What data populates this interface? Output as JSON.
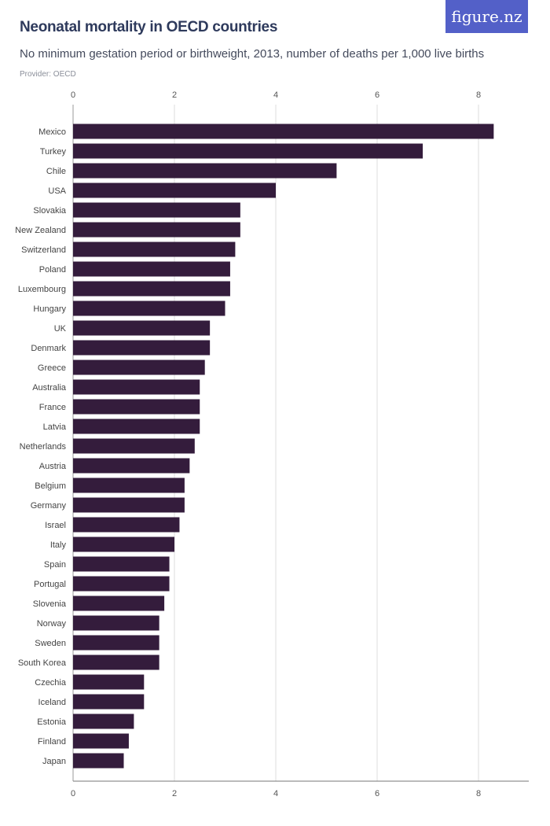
{
  "header": {
    "title": "Neonatal mortality in OECD countries",
    "subtitle": "No minimum gestation period or birthweight, 2013, number of deaths per 1,000 live births",
    "provider": "Provider: OECD",
    "logo": "figure.nz"
  },
  "colors": {
    "bar": "#341c3c",
    "logo_bg": "#5360c8",
    "grid": "#dddddd"
  },
  "chart_data": {
    "type": "bar",
    "orientation": "horizontal",
    "title": "Neonatal mortality in OECD countries",
    "xlabel": "",
    "ylabel": "",
    "xlim": [
      0,
      9
    ],
    "ticks": [
      0,
      2,
      4,
      6,
      8
    ],
    "grid": true,
    "categories": [
      "Mexico",
      "Turkey",
      "Chile",
      "USA",
      "Slovakia",
      "New Zealand",
      "Switzerland",
      "Poland",
      "Luxembourg",
      "Hungary",
      "UK",
      "Denmark",
      "Greece",
      "Australia",
      "France",
      "Latvia",
      "Netherlands",
      "Austria",
      "Belgium",
      "Germany",
      "Israel",
      "Italy",
      "Spain",
      "Portugal",
      "Slovenia",
      "Norway",
      "Sweden",
      "South Korea",
      "Czechia",
      "Iceland",
      "Estonia",
      "Finland",
      "Japan"
    ],
    "values": [
      8.3,
      6.9,
      5.2,
      4.0,
      3.3,
      3.3,
      3.2,
      3.1,
      3.1,
      3.0,
      2.7,
      2.7,
      2.6,
      2.5,
      2.5,
      2.5,
      2.4,
      2.3,
      2.2,
      2.2,
      2.1,
      2.0,
      1.9,
      1.9,
      1.8,
      1.7,
      1.7,
      1.7,
      1.4,
      1.4,
      1.2,
      1.1,
      1.0
    ]
  }
}
